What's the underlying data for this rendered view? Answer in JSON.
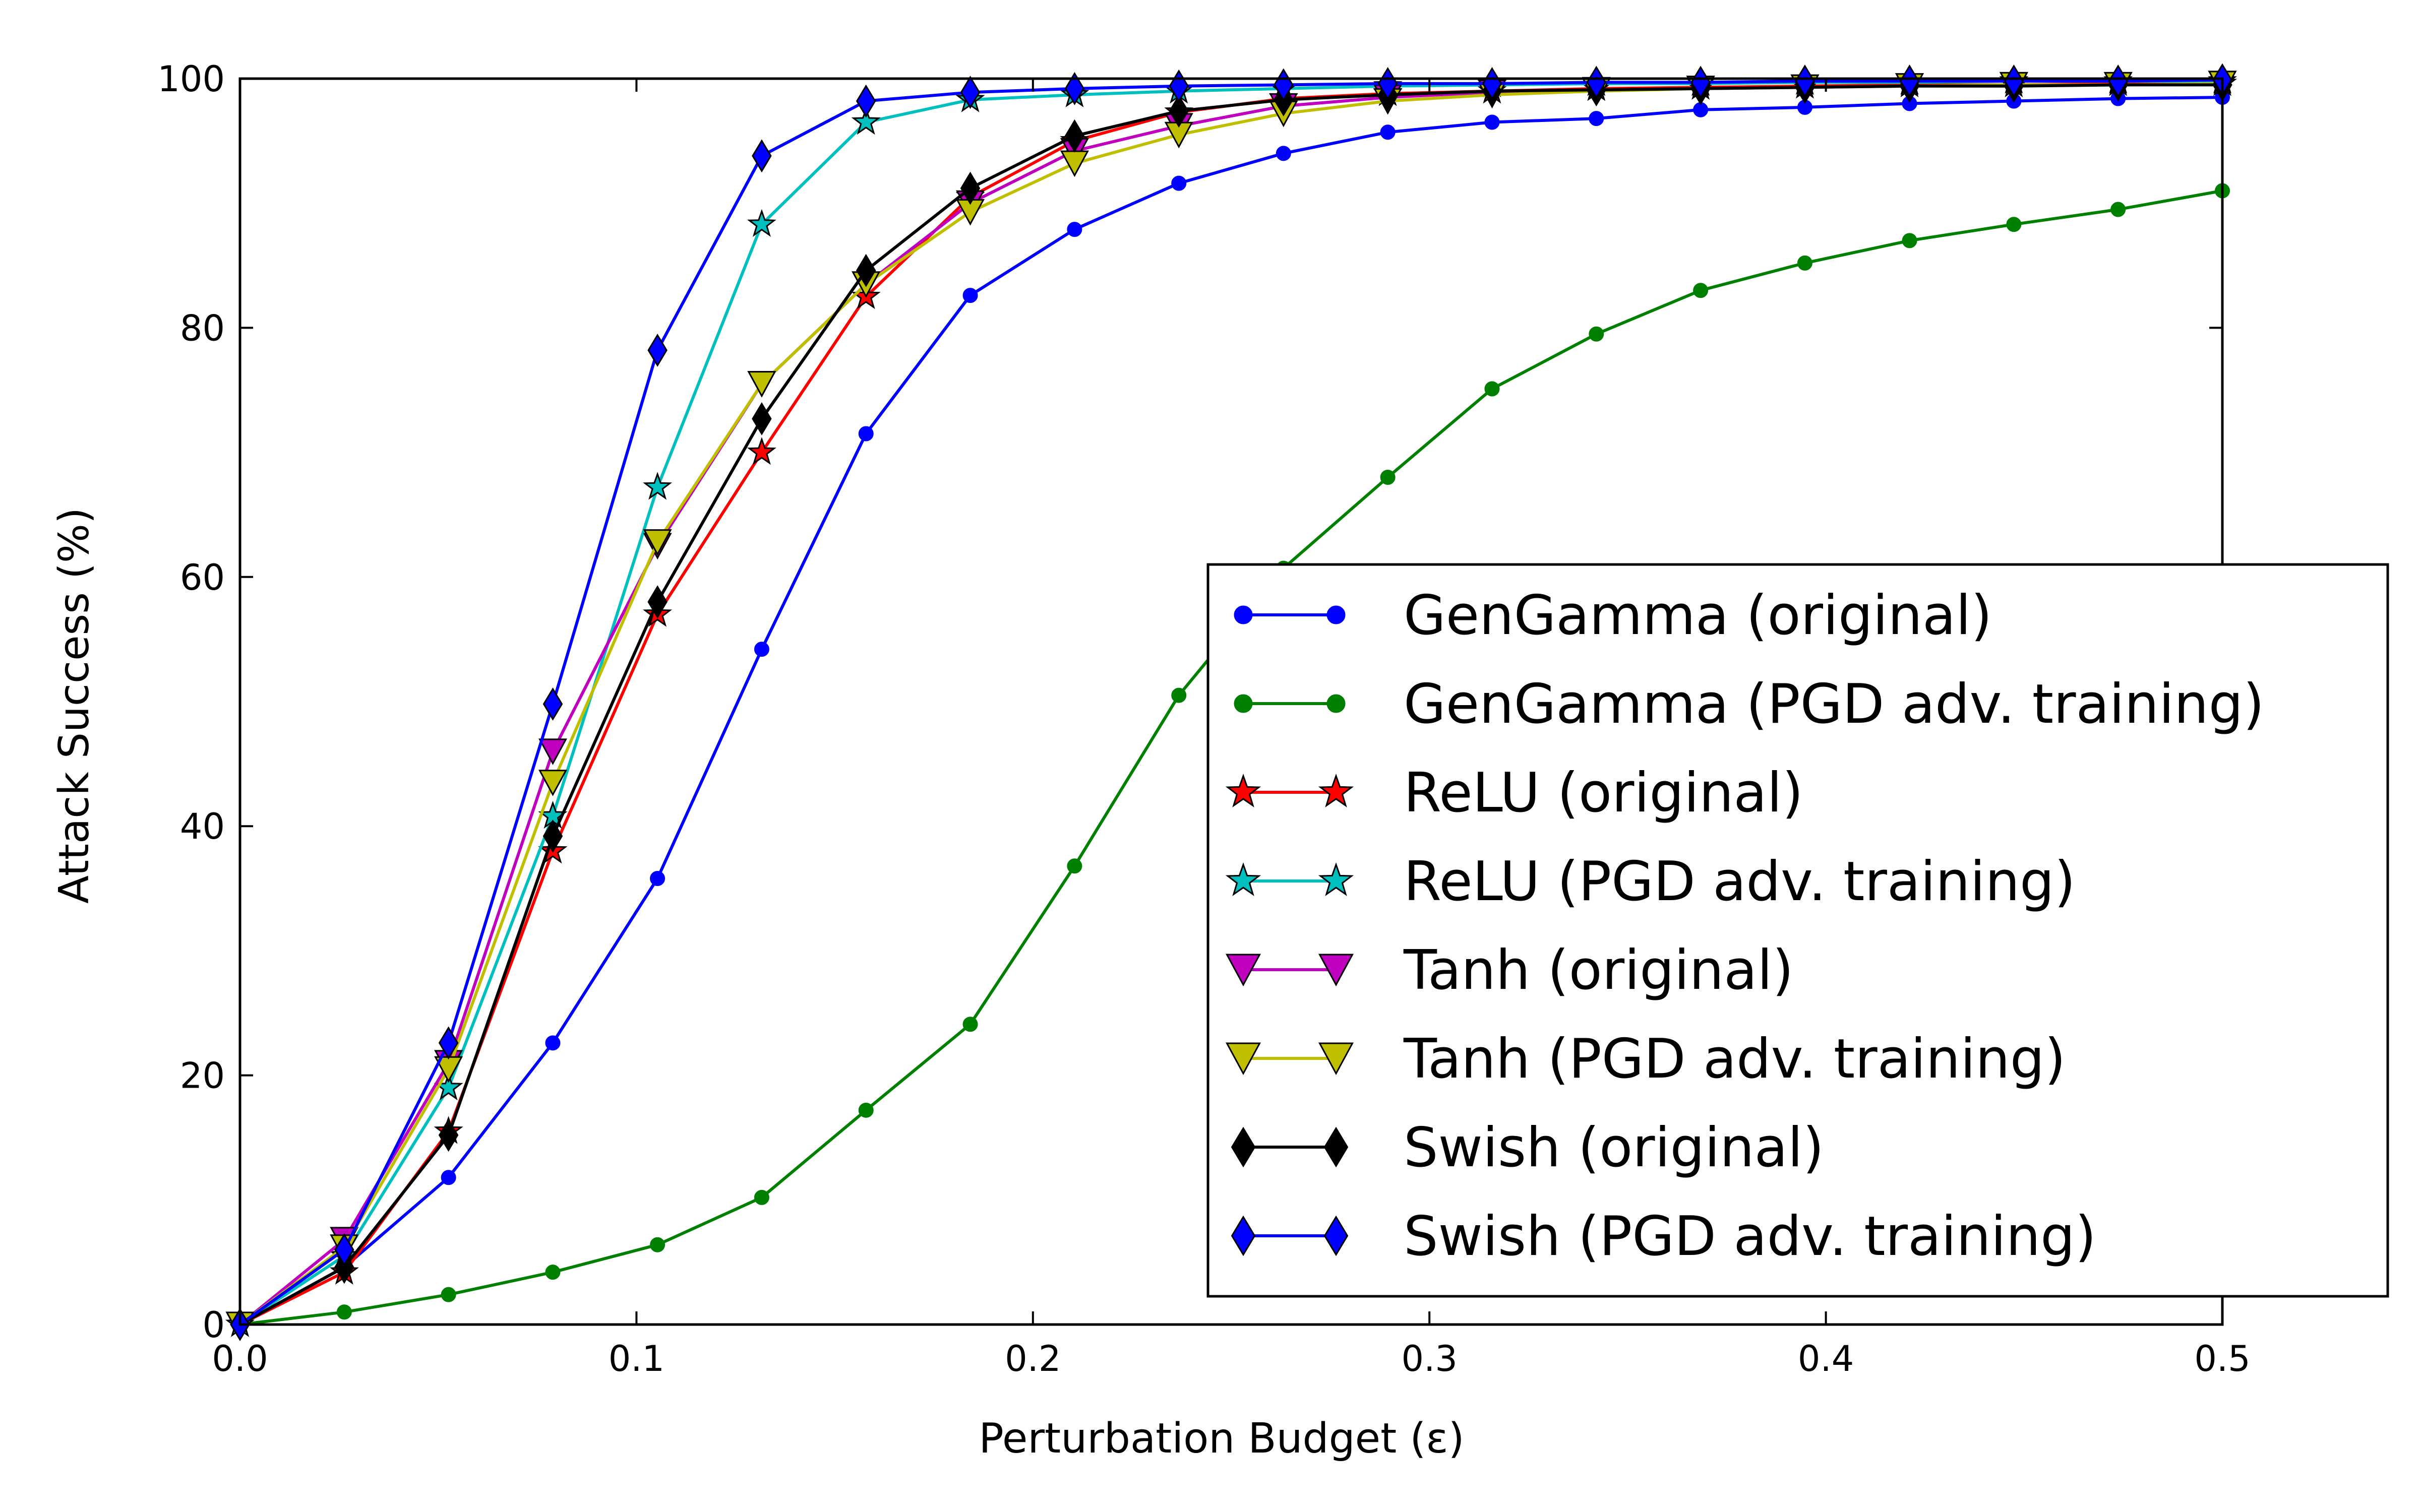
{
  "chart_data": {
    "type": "line",
    "title": "",
    "xlabel": "Perturbation Budget (ε)",
    "ylabel": "Attack Success (%)",
    "xlim": [
      0.0,
      0.5
    ],
    "ylim": [
      0,
      100
    ],
    "xticks": [
      "0.0",
      "0.1",
      "0.2",
      "0.3",
      "0.4",
      "0.5"
    ],
    "yticks": [
      "0",
      "20",
      "40",
      "60",
      "80",
      "100"
    ],
    "grid": false,
    "legend_position": "lower-right",
    "x": [
      0.0,
      0.0263,
      0.0526,
      0.0789,
      0.1053,
      0.1316,
      0.1579,
      0.1842,
      0.2105,
      0.2368,
      0.2632,
      0.2895,
      0.3158,
      0.3421,
      0.3684,
      0.3947,
      0.4211,
      0.4474,
      0.4737,
      0.5
    ],
    "series": [
      {
        "name": "GenGamma (original)",
        "color": "#0000ff",
        "marker": "dot",
        "values": [
          0,
          4.6,
          11.8,
          22.6,
          35.8,
          54.2,
          71.5,
          82.6,
          87.9,
          91.6,
          94.0,
          95.7,
          96.5,
          96.8,
          97.5,
          97.7,
          98.0,
          98.2,
          98.4,
          98.5
        ]
      },
      {
        "name": "GenGamma (PGD adv. training)",
        "color": "#008000",
        "marker": "dot",
        "values": [
          0,
          1.0,
          2.4,
          4.2,
          6.4,
          10.2,
          17.2,
          24.1,
          36.8,
          50.5,
          60.7,
          68.0,
          75.1,
          79.5,
          83.0,
          85.2,
          87.0,
          88.3,
          89.5,
          91.0
        ]
      },
      {
        "name": "ReLU (original)",
        "color": "#ff0000",
        "marker": "star",
        "values": [
          0,
          4.2,
          15.5,
          38.0,
          57.0,
          70.0,
          82.5,
          90.5,
          95.0,
          97.3,
          98.4,
          98.8,
          99.0,
          99.2,
          99.3,
          99.4,
          99.5,
          99.5,
          99.6,
          99.6
        ]
      },
      {
        "name": "ReLU (PGD adv. training)",
        "color": "#00bfbf",
        "marker": "star",
        "values": [
          0,
          5.5,
          19.0,
          40.8,
          67.2,
          88.3,
          96.5,
          98.3,
          98.7,
          99.0,
          99.2,
          99.4,
          99.5,
          99.6,
          99.6,
          99.7,
          99.7,
          99.8,
          99.8,
          99.8
        ]
      },
      {
        "name": "Tanh (original)",
        "color": "#bf00bf",
        "marker": "tri_down",
        "values": [
          0,
          6.8,
          21.0,
          46.0,
          62.5,
          75.5,
          83.5,
          90.0,
          94.2,
          96.2,
          97.8,
          98.5,
          98.9,
          99.1,
          99.2,
          99.3,
          99.4,
          99.5,
          99.5,
          99.6
        ]
      },
      {
        "name": "Tanh (PGD adv. training)",
        "color": "#bfbf00",
        "marker": "tri_down",
        "values": [
          0,
          6.2,
          20.5,
          43.5,
          62.8,
          75.5,
          83.5,
          89.3,
          93.2,
          95.5,
          97.2,
          98.2,
          98.7,
          99.0,
          99.2,
          99.3,
          99.4,
          99.5,
          99.5,
          99.6
        ]
      },
      {
        "name": "Swish (original)",
        "color": "#000000",
        "marker": "diamond",
        "values": [
          0,
          4.6,
          15.2,
          39.2,
          58.0,
          72.7,
          84.6,
          91.2,
          95.4,
          97.4,
          98.3,
          98.7,
          99.0,
          99.1,
          99.2,
          99.3,
          99.4,
          99.4,
          99.5,
          99.5
        ]
      },
      {
        "name": "Swish (PGD adv. training)",
        "color": "#0000ff",
        "marker": "diamond",
        "values": [
          0,
          6.0,
          22.6,
          49.8,
          78.2,
          93.8,
          98.2,
          98.9,
          99.2,
          99.4,
          99.5,
          99.6,
          99.6,
          99.7,
          99.7,
          99.8,
          99.8,
          99.8,
          99.8,
          99.9
        ]
      }
    ]
  }
}
